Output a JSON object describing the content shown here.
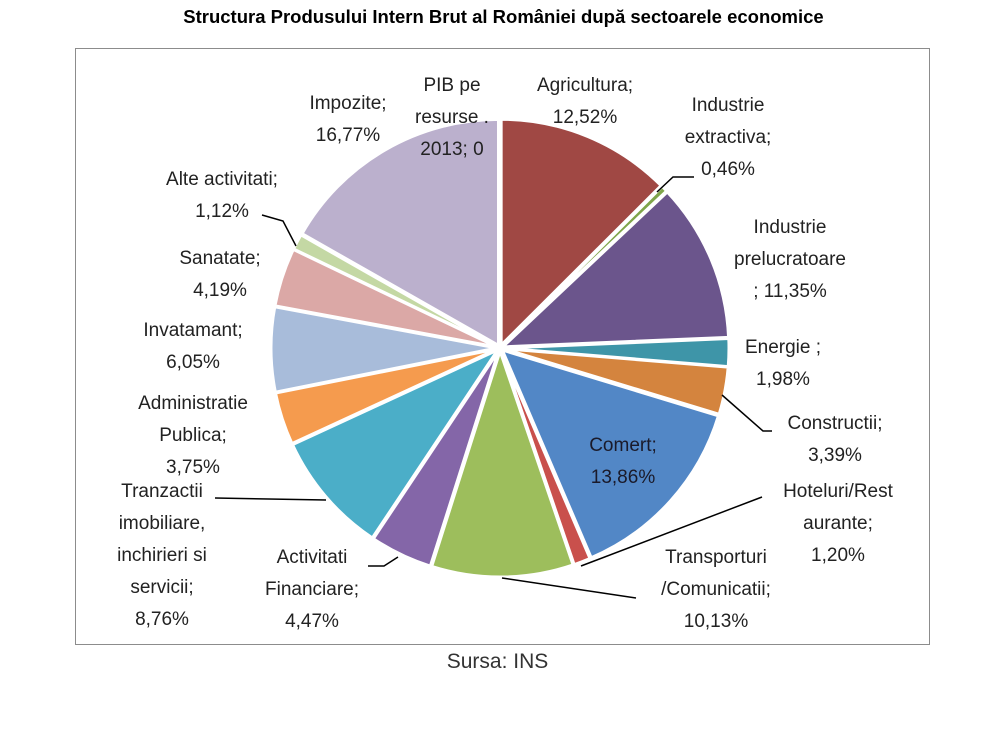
{
  "chart_data": {
    "type": "pie",
    "title": "Structura Produsului Intern Brut al României după sectoarele economice",
    "source": "Sursa: INS",
    "slices": [
      {
        "name": "Agricultura",
        "value": 12.52,
        "label": "Agricultura;\n12,52%",
        "color": "#A04844"
      },
      {
        "name": "Industrie extractiva",
        "value": 0.46,
        "label": "Industrie\nextractiva;\n0,46%",
        "color": "#7FA54A"
      },
      {
        "name": "Industrie prelucratoare",
        "value": 11.35,
        "label": "Industrie\nprelucratoare\n; 11,35%",
        "color": "#6B558C"
      },
      {
        "name": "Energie",
        "value": 1.98,
        "label": "Energie ;\n1,98%",
        "color": "#3E95A8"
      },
      {
        "name": "Constructii",
        "value": 3.39,
        "label": "Constructii;\n3,39%",
        "color": "#D4843E"
      },
      {
        "name": "Comert",
        "value": 13.86,
        "label": "Comert;\n13,86%",
        "color": "#5287C6"
      },
      {
        "name": "Hoteluri/Restaurante",
        "value": 1.2,
        "label": "Hoteluri/Rest\naurante;\n1,20%",
        "color": "#C9504C"
      },
      {
        "name": "Transporturi/Comunicatii",
        "value": 10.13,
        "label": "Transporturi\n/Comunicatii;\n10,13%",
        "color": "#9DBE5C"
      },
      {
        "name": "Activitati Financiare",
        "value": 4.47,
        "label": "Activitati\nFinanciare;\n4,47%",
        "color": "#8466A8"
      },
      {
        "name": "Tranzactii imobiliare, inchirieri si servicii",
        "value": 8.76,
        "label": "Tranzactii\nimobiliare,\ninchirieri si\nservicii;\n8,76%",
        "color": "#4BAEC8"
      },
      {
        "name": "Administratie Publica",
        "value": 3.75,
        "label": "Administratie\nPublica;\n3,75%",
        "color": "#F59B4E"
      },
      {
        "name": "Invatamant",
        "value": 6.05,
        "label": "Invatamant;\n6,05%",
        "color": "#A8BCDA"
      },
      {
        "name": "Sanatate",
        "value": 4.19,
        "label": "Sanatate;\n4,19%",
        "color": "#DBA8A6"
      },
      {
        "name": "Alte activitati",
        "value": 1.12,
        "label": "Alte activitati;\n1,12%",
        "color": "#C4D8A4"
      },
      {
        "name": "Impozite",
        "value": 16.77,
        "label": "Impozite;\n16,77%",
        "color": "#BBB0CD"
      },
      {
        "name": "PIB pe resurse 2013",
        "value": 0,
        "label": "PIB pe\nresurse .\n2013; 0",
        "color": "#F9B88A"
      }
    ]
  }
}
